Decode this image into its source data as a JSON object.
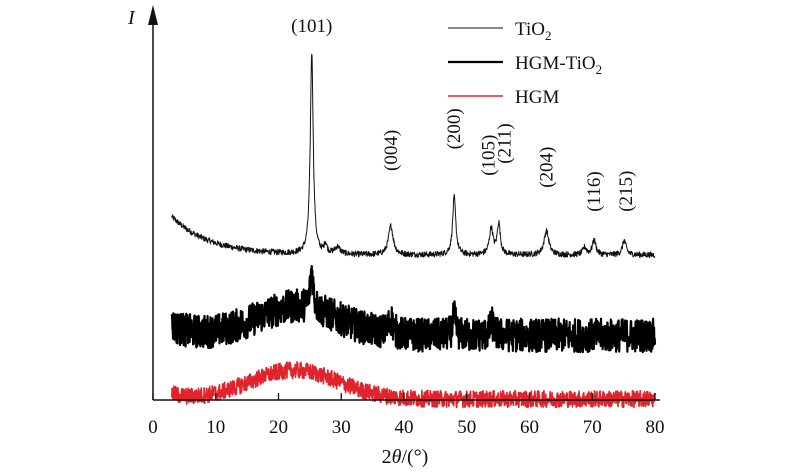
{
  "chart_data": {
    "type": "line",
    "title": "",
    "xlabel": "2θ/(°)",
    "xlabel_parts": {
      "prefix": "2",
      "italic": "θ",
      "suffix": "/(°)"
    },
    "ylabel": "I",
    "xlim": [
      0,
      80
    ],
    "xticks": [
      0,
      10,
      20,
      30,
      40,
      50,
      60,
      70,
      80
    ],
    "xtick_labels": [
      "0",
      "10",
      "20",
      "30",
      "40",
      "50",
      "60",
      "70",
      "80"
    ],
    "y_ticks_shown": false,
    "grid": false,
    "legend": {
      "placement": "top-right",
      "entries": [
        {
          "label": "TiO2",
          "base": "TiO",
          "sub": "2",
          "color": "#111111",
          "weight": "thin"
        },
        {
          "label": "HGM-TiO2",
          "base": "HGM-TiO",
          "sub": "2",
          "color": "#000000",
          "weight": "thick"
        },
        {
          "label": "HGM",
          "base": "HGM",
          "sub": "",
          "color": "#e3232c",
          "weight": "medium"
        }
      ]
    },
    "series": [
      {
        "name": "TiO2",
        "color": "#111111",
        "x_range": [
          3,
          80
        ],
        "baseline_offset": 0.0,
        "decay": {
          "amp": 0.16,
          "tau": 6
        },
        "noise": 0.012,
        "peaks": [
          {
            "x": 25.3,
            "h": 0.84,
            "w": 0.28
          },
          {
            "x": 27.5,
            "h": 0.04,
            "w": 0.25
          },
          {
            "x": 29.4,
            "h": 0.03,
            "w": 0.5
          },
          {
            "x": 37.9,
            "h": 0.12,
            "w": 0.45
          },
          {
            "x": 48.0,
            "h": 0.24,
            "w": 0.3
          },
          {
            "x": 53.9,
            "h": 0.11,
            "w": 0.35
          },
          {
            "x": 55.1,
            "h": 0.13,
            "w": 0.3
          },
          {
            "x": 62.7,
            "h": 0.1,
            "w": 0.45
          },
          {
            "x": 68.8,
            "h": 0.03,
            "w": 0.35
          },
          {
            "x": 70.3,
            "h": 0.06,
            "w": 0.35
          },
          {
            "x": 75.1,
            "h": 0.06,
            "w": 0.35
          }
        ],
        "hump": null
      },
      {
        "name": "HGM-TiO2",
        "color": "#000000",
        "x_range": [
          3,
          80
        ],
        "baseline_offset": -0.335,
        "decay": {
          "amp": 0.04,
          "tau": 3
        },
        "noise": 0.07,
        "peaks": [
          {
            "x": 25.3,
            "h": 0.16,
            "w": 0.3
          },
          {
            "x": 37.9,
            "h": 0.06,
            "w": 0.4
          },
          {
            "x": 48.0,
            "h": 0.08,
            "w": 0.3
          },
          {
            "x": 54.0,
            "h": 0.05,
            "w": 0.35
          }
        ],
        "hump": {
          "x": 23,
          "h": 0.12,
          "w": 6.5
        }
      },
      {
        "name": "HGM",
        "color": "#e3232c",
        "x_range": [
          3,
          80
        ],
        "baseline_offset": -0.6,
        "decay": {
          "amp": 0.02,
          "tau": 2
        },
        "noise": 0.035,
        "peaks": [],
        "hump": {
          "x": 22.5,
          "h": 0.12,
          "w": 7
        }
      }
    ],
    "peak_labels": [
      {
        "text": "(101)",
        "x": 25.3,
        "level": 0.93,
        "rotated": false
      },
      {
        "text": "(004)",
        "x": 37.9,
        "level": 0.35,
        "rotated": true
      },
      {
        "text": "(200)",
        "x": 48.0,
        "level": 0.44,
        "rotated": true
      },
      {
        "text": "(105)",
        "x": 53.5,
        "level": 0.33,
        "rotated": true
      },
      {
        "text": "(211)",
        "x": 56.0,
        "level": 0.38,
        "rotated": true
      },
      {
        "text": "(204)",
        "x": 62.7,
        "level": 0.28,
        "rotated": true
      },
      {
        "text": "(116)",
        "x": 70.3,
        "level": 0.18,
        "rotated": true
      },
      {
        "text": "(215)",
        "x": 75.4,
        "level": 0.18,
        "rotated": true
      }
    ]
  }
}
